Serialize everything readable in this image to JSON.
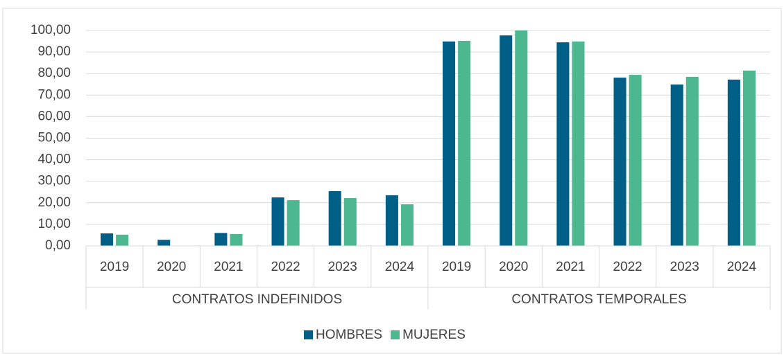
{
  "chart_data": {
    "type": "bar",
    "groups": [
      {
        "name": "CONTRATOS INDEFINIDOS",
        "categories": [
          "2019",
          "2020",
          "2021",
          "2022",
          "2023",
          "2024"
        ]
      },
      {
        "name": "CONTRATOS TEMPORALES",
        "categories": [
          "2019",
          "2020",
          "2021",
          "2022",
          "2023",
          "2024"
        ]
      }
    ],
    "series": [
      {
        "name": "HOMBRES",
        "color": "#005f86",
        "values": [
          5.8,
          2.8,
          6.0,
          22.5,
          25.4,
          23.5,
          94.9,
          97.7,
          94.5,
          78.1,
          74.9,
          77.2
        ]
      },
      {
        "name": "MUJERES",
        "color": "#4db88f",
        "values": [
          5.2,
          0,
          5.5,
          21.2,
          22.2,
          19.3,
          95.2,
          100,
          94.9,
          79.4,
          78.5,
          81.4
        ]
      }
    ],
    "ylim": [
      0,
      100
    ],
    "yticks": [
      {
        "value": 0,
        "label": "0,00"
      },
      {
        "value": 10,
        "label": "10,00"
      },
      {
        "value": 20,
        "label": "20,00"
      },
      {
        "value": 30,
        "label": "30,00"
      },
      {
        "value": 40,
        "label": "40,00"
      },
      {
        "value": 50,
        "label": "50,00"
      },
      {
        "value": 60,
        "label": "60,00"
      },
      {
        "value": 70,
        "label": "70,00"
      },
      {
        "value": 80,
        "label": "80,00"
      },
      {
        "value": 90,
        "label": "90,00"
      },
      {
        "value": 100,
        "label": "100,00"
      }
    ],
    "grid": true,
    "legend": "bottom"
  }
}
